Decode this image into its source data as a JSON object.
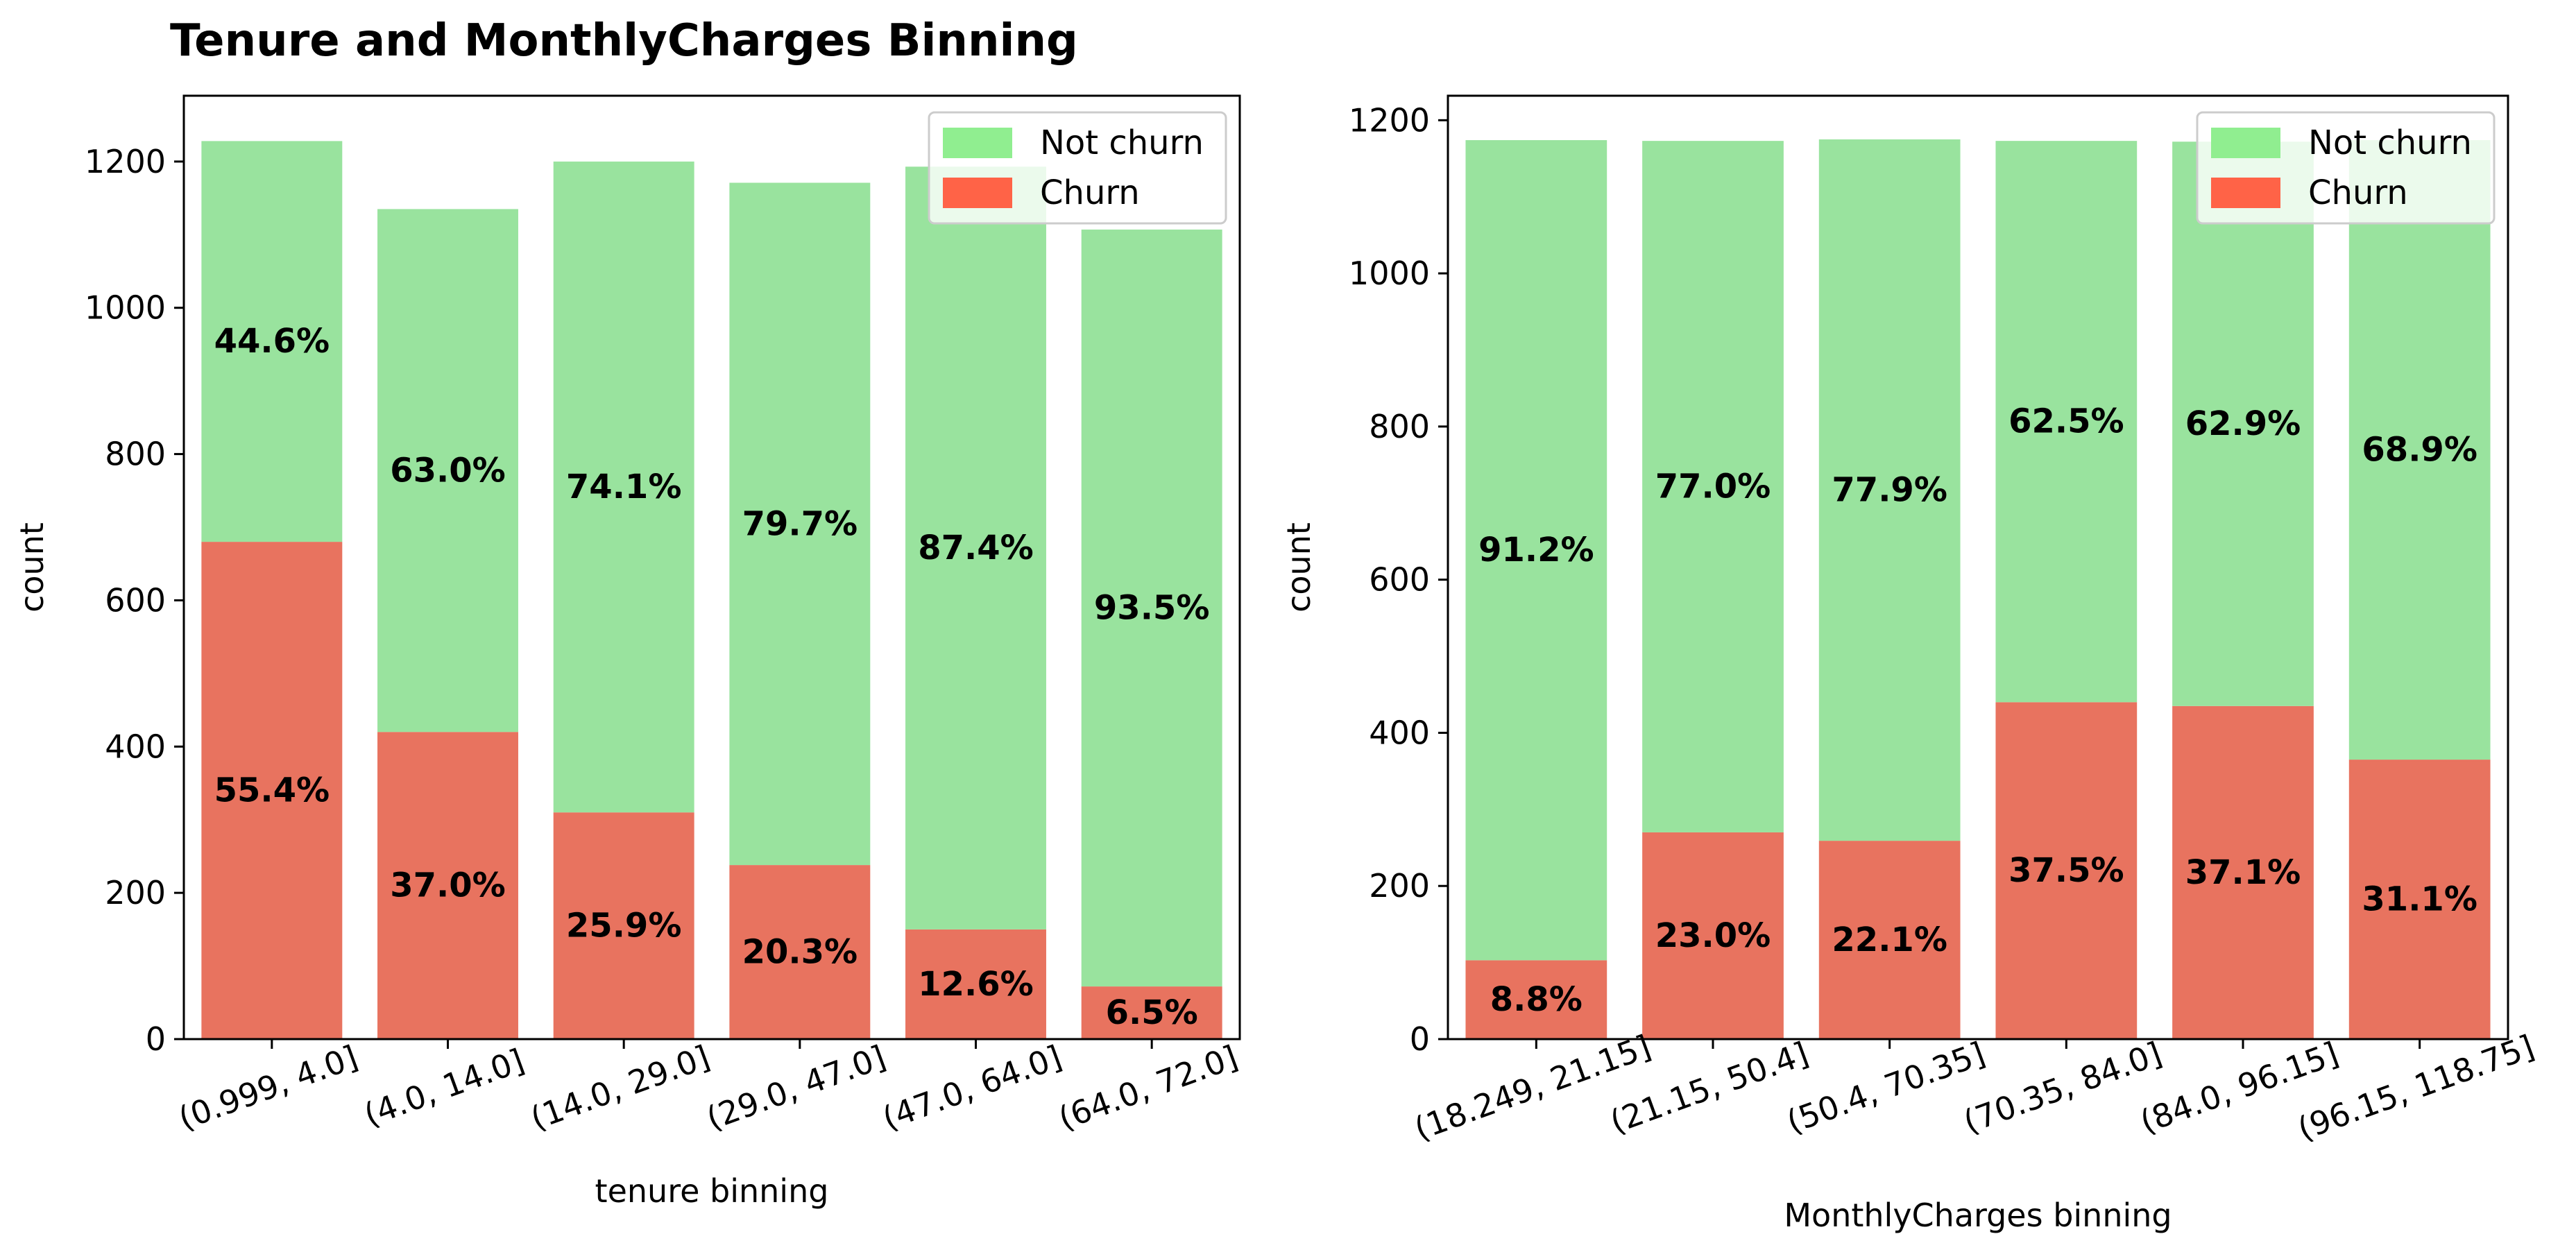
{
  "figure": {
    "title": "Tenure and MonthlyCharges Binning"
  },
  "colors": {
    "not_churn": "#99e39e",
    "churn": "#e8735f",
    "legend_not_churn": "#90ee90",
    "legend_churn": "#ff6347",
    "axis": "#000000",
    "label_text": "#000000"
  },
  "chart_data": [
    {
      "type": "bar",
      "stacked": true,
      "xlabel": "tenure binning",
      "ylabel": "count",
      "ylim": [
        0,
        1290
      ],
      "yticks": [
        0,
        200,
        400,
        600,
        800,
        1000,
        1200
      ],
      "categories": [
        "(0.999, 4.0]",
        "(4.0, 14.0]",
        "(14.0, 29.0]",
        "(29.0, 47.0]",
        "(47.0, 64.0]",
        "(64.0, 72.0]"
      ],
      "series": [
        {
          "name": "Churn",
          "color_key": "churn",
          "values": [
            680,
            420,
            310,
            238,
            150,
            72
          ],
          "labels": [
            "55.4%",
            "37.0%",
            "25.9%",
            "20.3%",
            "12.6%",
            "6.5%"
          ]
        },
        {
          "name": "Not churn",
          "color_key": "not_churn",
          "values": [
            548,
            715,
            890,
            933,
            1043,
            1035
          ],
          "labels": [
            "44.6%",
            "63.0%",
            "74.1%",
            "79.7%",
            "87.4%",
            "93.5%"
          ]
        }
      ],
      "legend": {
        "position": "upper right",
        "entries": [
          "Not churn",
          "Churn"
        ]
      },
      "grid": false
    },
    {
      "type": "bar",
      "stacked": true,
      "xlabel": "MonthlyCharges binning",
      "ylabel": "count",
      "ylim": [
        0,
        1232
      ],
      "yticks": [
        0,
        200,
        400,
        600,
        800,
        1000,
        1200
      ],
      "categories": [
        "(18.249, 21.15]",
        "(21.15, 50.4]",
        "(50.4, 70.35]",
        "(70.35, 84.0]",
        "(84.0, 96.15]",
        "(96.15, 118.75]"
      ],
      "series": [
        {
          "name": "Churn",
          "color_key": "churn",
          "values": [
            103,
            270,
            259,
            440,
            435,
            365
          ],
          "labels": [
            "8.8%",
            "23.0%",
            "22.1%",
            "37.5%",
            "37.1%",
            "31.1%"
          ]
        },
        {
          "name": "Not churn",
          "color_key": "not_churn",
          "values": [
            1071,
            903,
            916,
            733,
            737,
            809
          ],
          "labels": [
            "91.2%",
            "77.0%",
            "77.9%",
            "62.5%",
            "62.9%",
            "68.9%"
          ]
        }
      ],
      "legend": {
        "position": "upper right",
        "entries": [
          "Not churn",
          "Churn"
        ]
      },
      "grid": false
    }
  ]
}
